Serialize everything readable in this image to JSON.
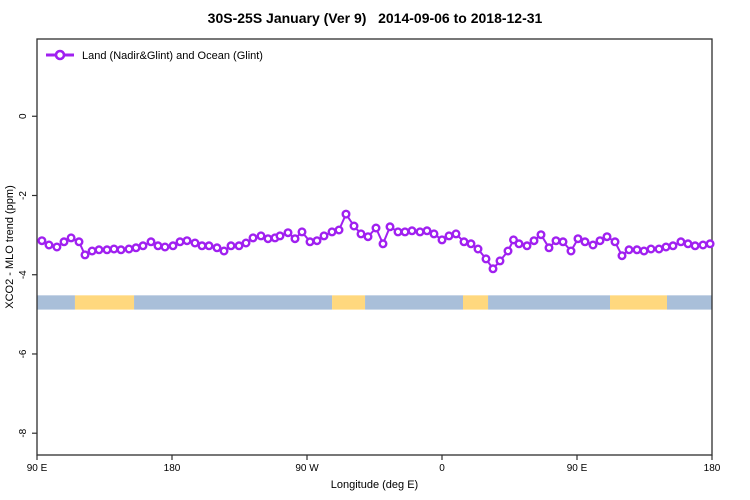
{
  "title": "30S-25S January (Ver 9)   2014-09-06 to 2018-12-31",
  "legend": {
    "label": "Land (Nadir&Glint) and Ocean (Glint)"
  },
  "colors": {
    "series": "#A020F0",
    "marker_fill": "#ffffff",
    "band_ocean": "#A9BFD9",
    "band_land": "#FFD87E",
    "axis": "#2e2e2e",
    "text": "#000000"
  },
  "chart_data": {
    "type": "line",
    "title": "30S-25S January (Ver 9)   2014-09-06 to 2018-12-31",
    "xlabel": "Longitude (deg E)",
    "ylabel": "XCO2 - MLO trend (ppm)",
    "xlim": [
      90,
      540
    ],
    "ylim": [
      -8.55,
      1.95
    ],
    "grid": false,
    "legend_position": "top-left",
    "xticks": {
      "values": [
        90,
        180,
        270,
        360,
        450,
        540
      ],
      "labels": [
        "90 E",
        "180",
        "90 W",
        "0",
        "90 E",
        "180"
      ]
    },
    "yticks": {
      "values": [
        0,
        -2,
        -4,
        -6,
        -8
      ],
      "labels": [
        "0",
        "-2",
        "-4",
        "-6",
        "-8"
      ]
    },
    "series": [
      {
        "name": "Land (Nadir&Glint) and Ocean (Glint)",
        "marker": "open-circle",
        "x": [
          93.3,
          98,
          103.3,
          108,
          112.7,
          118,
          122,
          126.7,
          131.3,
          136.7,
          141.3,
          146,
          151.3,
          156,
          160.7,
          166,
          170.7,
          175.3,
          180.7,
          185.3,
          190,
          195.3,
          200,
          204.7,
          210,
          214.7,
          219.3,
          224.7,
          229.3,
          234,
          239.3,
          244,
          248.7,
          252,
          257.3,
          262,
          266.7,
          272,
          276.7,
          281.3,
          286.7,
          291.3,
          296,
          301.3,
          306,
          310.7,
          316,
          320.7,
          325.3,
          330.7,
          335.3,
          340,
          345.3,
          350,
          354.7,
          360,
          364.7,
          369.3,
          374.7,
          379.3,
          384,
          389.3,
          394,
          398.7,
          404,
          407.7,
          411.3,
          416.7,
          421.3,
          426,
          431.3,
          436,
          440.7,
          446,
          450.7,
          455.3,
          460.7,
          465.3,
          470,
          475.3,
          480,
          484.7,
          490,
          494.7,
          499.3,
          504.7,
          509.3,
          514,
          519.3,
          524,
          528.7,
          534,
          538.7
        ],
        "y": [
          -3.14,
          -3.25,
          -3.3,
          -3.17,
          -3.07,
          -3.17,
          -3.5,
          -3.4,
          -3.37,
          -3.37,
          -3.35,
          -3.37,
          -3.35,
          -3.32,
          -3.27,
          -3.17,
          -3.27,
          -3.3,
          -3.27,
          -3.17,
          -3.14,
          -3.2,
          -3.27,
          -3.27,
          -3.32,
          -3.4,
          -3.27,
          -3.27,
          -3.2,
          -3.07,
          -3.02,
          -3.09,
          -3.07,
          -3.02,
          -2.94,
          -3.09,
          -2.92,
          -3.17,
          -3.14,
          -3.02,
          -2.92,
          -2.87,
          -2.47,
          -2.77,
          -2.97,
          -3.04,
          -2.82,
          -3.22,
          -2.79,
          -2.92,
          -2.92,
          -2.89,
          -2.92,
          -2.89,
          -2.97,
          -3.12,
          -3.02,
          -2.97,
          -3.17,
          -3.22,
          -3.35,
          -3.6,
          -3.85,
          -3.65,
          -3.4,
          -3.12,
          -3.22,
          -3.27,
          -3.14,
          -2.99,
          -3.32,
          -3.14,
          -3.17,
          -3.4,
          -3.09,
          -3.17,
          -3.25,
          -3.14,
          -3.04,
          -3.17,
          -3.52,
          -3.37,
          -3.37,
          -3.4,
          -3.35,
          -3.35,
          -3.3,
          -3.27,
          -3.17,
          -3.22,
          -3.27,
          -3.25,
          -3.22
        ]
      }
    ],
    "surface_band": {
      "y_top": -4.52,
      "y_bottom": -4.88,
      "segments": [
        {
          "from": 90,
          "to": 115.3,
          "type": "ocean"
        },
        {
          "from": 115.3,
          "to": 154.7,
          "type": "land"
        },
        {
          "from": 154.7,
          "to": 286.7,
          "type": "ocean"
        },
        {
          "from": 286.7,
          "to": 308.7,
          "type": "land"
        },
        {
          "from": 308.7,
          "to": 374.0,
          "type": "ocean"
        },
        {
          "from": 374.0,
          "to": 390.7,
          "type": "land"
        },
        {
          "from": 390.7,
          "to": 472.0,
          "type": "ocean"
        },
        {
          "from": 472.0,
          "to": 510.0,
          "type": "land"
        },
        {
          "from": 510.0,
          "to": 540.0,
          "type": "ocean"
        }
      ]
    }
  }
}
